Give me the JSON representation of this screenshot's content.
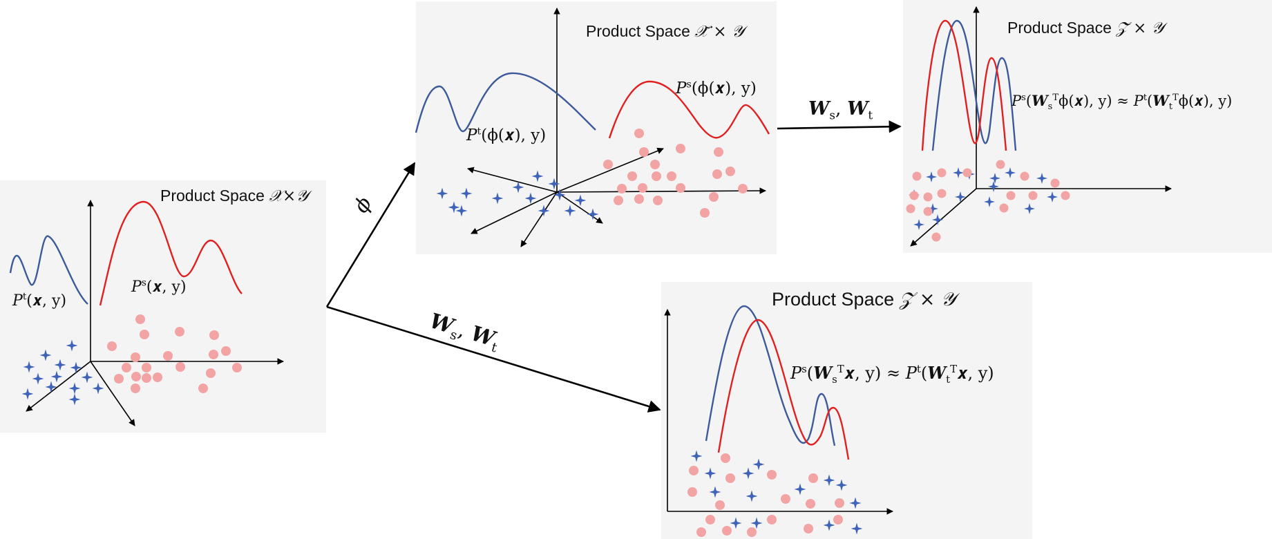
{
  "panels": {
    "xy": {
      "title_prefix": "Product Space",
      "title_symbol": "𝒳×𝒴"
    },
    "phi": {
      "title_prefix": "Product Space",
      "title_symbol": "𝒳̃ × 𝒴"
    },
    "zt": {
      "title_prefix": "Product Space",
      "title_symbol": "𝒵̃ × 𝒴"
    },
    "z": {
      "title_prefix": "Product Space",
      "title_symbol": "𝒵 × 𝒴"
    }
  },
  "labels": {
    "pt_x": {
      "P": "P",
      "sup": "t",
      "args": "(𝒙, y)"
    },
    "ps_x": {
      "P": "P",
      "sup": "s",
      "args": "(𝒙, y)"
    },
    "pt_phi": {
      "P": "P",
      "sup": "t",
      "args": "(ϕ(𝒙), y)"
    },
    "ps_phi": {
      "P": "P",
      "sup": "s",
      "args": "(ϕ(𝒙), y)"
    },
    "eq_zt": {
      "lhs_P": "P",
      "lhs_sup": "s",
      "lhs_open": "(",
      "lhs_W": "W",
      "lhs_sup2": "T",
      "lhs_sub": "s",
      "lhs_rest": "ϕ(𝒙), y)",
      "approx": " ≈ ",
      "rhs_P": "P",
      "rhs_sup": "t",
      "rhs_open": "(",
      "rhs_W": "W",
      "rhs_sup2": "T",
      "rhs_sub": "t",
      "rhs_rest": "ϕ(𝒙), y)"
    },
    "eq_z": {
      "lhs_P": "P",
      "lhs_sup": "s",
      "lhs_open": "(",
      "lhs_W": "W",
      "lhs_sup2": "T",
      "lhs_sub": "s",
      "lhs_rest": "𝒙, y)",
      "approx": " ≈ ",
      "rhs_P": "P",
      "rhs_sup": "t",
      "rhs_open": "(",
      "rhs_W": "W",
      "rhs_sup2": "T",
      "rhs_sub": "t",
      "rhs_rest": "𝒙, y)"
    }
  },
  "arrows": {
    "phi_label": "ϕ",
    "w_top": {
      "W1": "W",
      "s": "s",
      "sep": ", ",
      "W2": "W",
      "t": "t"
    },
    "w_bottom": {
      "W1": "W",
      "s": "s",
      "sep": ", ",
      "W2": "W",
      "t": "t"
    }
  },
  "colors": {
    "panel_bg": "#f4f4f4",
    "target_curve": "#3c5a9a",
    "source_curve": "#e02020",
    "target_marker": "#3d62b8",
    "source_marker": "#f2a4a4",
    "axis": "#000000"
  },
  "legend_semantics": {
    "target_marker": "star",
    "source_marker": "circle"
  }
}
